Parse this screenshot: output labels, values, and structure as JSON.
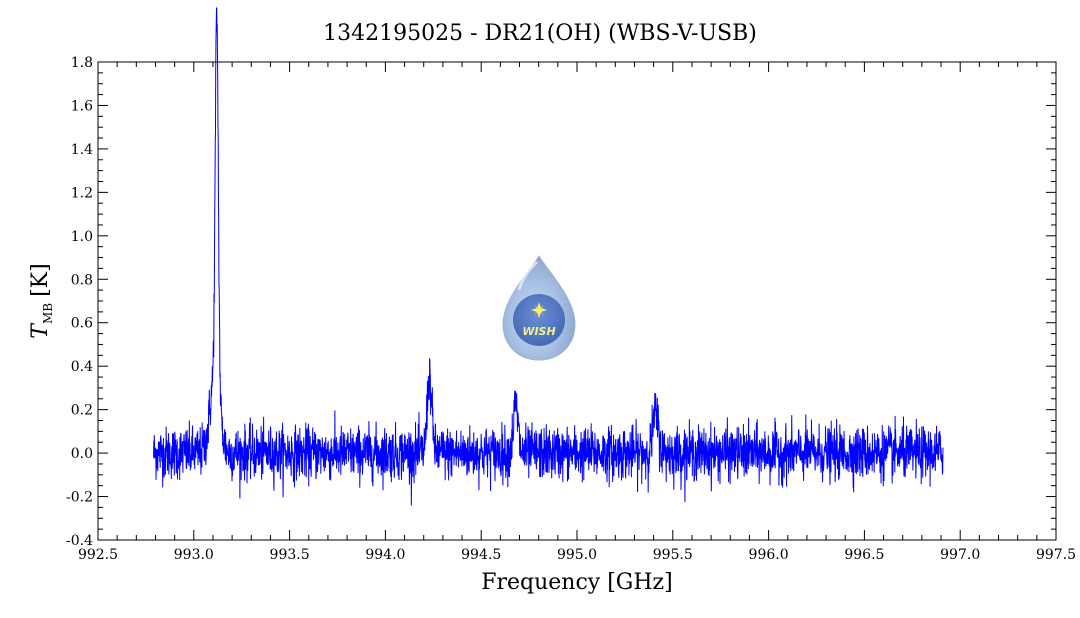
{
  "chart_data": {
    "type": "line",
    "title": "1342195025 - DR21(OH) (WBS-V-USB)",
    "xlabel": "Frequency [GHz]",
    "ylabel_main": "T",
    "ylabel_sub": "MB",
    "ylabel_unit": "[K]",
    "xlim": [
      992.5,
      997.5
    ],
    "ylim": [
      -0.4,
      1.8
    ],
    "xticks": [
      "992.5",
      "993.0",
      "993.5",
      "994.0",
      "994.5",
      "995.0",
      "995.5",
      "996.0",
      "996.5",
      "997.0",
      "997.5"
    ],
    "yticks": [
      "-0.4",
      "-0.2",
      "0.0",
      "0.2",
      "0.4",
      "0.6",
      "0.8",
      "1.0",
      "1.2",
      "1.4",
      "1.6",
      "1.8"
    ],
    "series_color": "#0000ff",
    "grid": false,
    "series": [
      {
        "x_range": [
          992.79,
          996.91
        ],
        "noise_rms": 0.06,
        "baseline": 0.0,
        "features": [
          {
            "x": 993.12,
            "peak": 1.7,
            "width": 0.008
          },
          {
            "x": 993.11,
            "peak": 0.35,
            "width": 0.025
          },
          {
            "x": 994.23,
            "peak": 0.35,
            "width": 0.012
          },
          {
            "x": 994.68,
            "peak": 0.22,
            "width": 0.012
          },
          {
            "x": 995.41,
            "peak": 0.18,
            "width": 0.015
          }
        ]
      }
    ],
    "logo": {
      "text": "WISH"
    }
  }
}
